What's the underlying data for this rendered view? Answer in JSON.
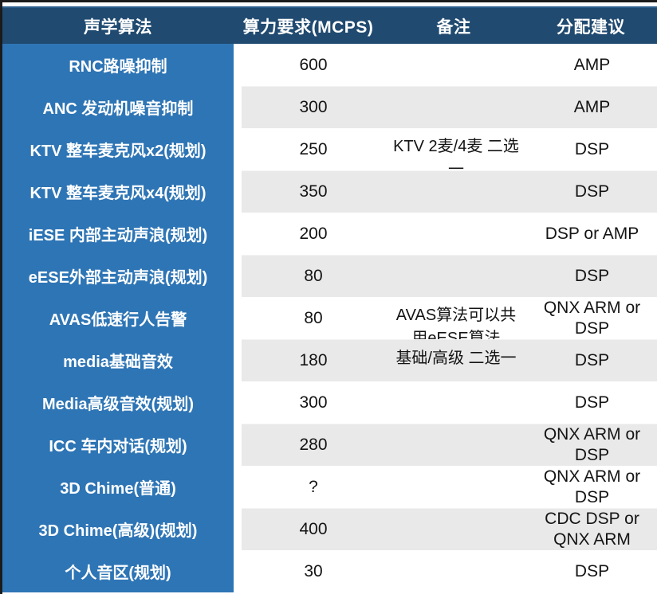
{
  "table": {
    "columns": [
      {
        "key": "algorithm",
        "label": "声学算法"
      },
      {
        "key": "mcps",
        "label": "算力要求(MCPS)"
      },
      {
        "key": "note",
        "label": "备注"
      },
      {
        "key": "allocation",
        "label": "分配建议"
      }
    ],
    "rows": [
      {
        "algorithm": "RNC路噪抑制",
        "mcps": "600",
        "note": "",
        "allocation": "AMP"
      },
      {
        "algorithm": "ANC 发动机噪音抑制",
        "mcps": "300",
        "note": "",
        "allocation": "AMP"
      },
      {
        "algorithm": "KTV 整车麦克风x2(规划)",
        "mcps": "250",
        "note": "KTV 2麦/4麦 二选一",
        "allocation": "DSP"
      },
      {
        "algorithm": "KTV 整车麦克风x4(规划)",
        "mcps": "350",
        "note": "",
        "allocation": "DSP"
      },
      {
        "algorithm": "iESE 内部主动声浪(规划)",
        "mcps": "200",
        "note": "",
        "allocation": "DSP or AMP"
      },
      {
        "algorithm": "eESE外部主动声浪(规划)",
        "mcps": "80",
        "note": "",
        "allocation": "DSP"
      },
      {
        "algorithm": "AVAS低速行人告警",
        "mcps": "80",
        "note": "AVAS算法可以共用eESE算法",
        "allocation": "QNX ARM or DSP"
      },
      {
        "algorithm": "media基础音效",
        "mcps": "180",
        "note": "基础/高级 二选一",
        "allocation": "DSP"
      },
      {
        "algorithm": "Media高级音效(规划)",
        "mcps": "300",
        "note": "",
        "allocation": "DSP"
      },
      {
        "algorithm": "ICC 车内对话(规划)",
        "mcps": "280",
        "note": "",
        "allocation": "QNX ARM or DSP"
      },
      {
        "algorithm": "3D Chime(普通)",
        "mcps": "?",
        "note": "",
        "allocation": "QNX ARM or DSP"
      },
      {
        "algorithm": "3D Chime(高级)(规划)",
        "mcps": "400",
        "note": "",
        "allocation": "CDC DSP or QNX ARM"
      },
      {
        "algorithm": "个人音区(规划)",
        "mcps": "30",
        "note": "",
        "allocation": "DSP"
      }
    ]
  },
  "colors": {
    "header_bg": "#204A70",
    "algorithm_column_bg": "#2E75B5",
    "zebra_row_bg": "#E9E9EA",
    "header_text": "#FFFFFF",
    "body_text": "#141414"
  }
}
